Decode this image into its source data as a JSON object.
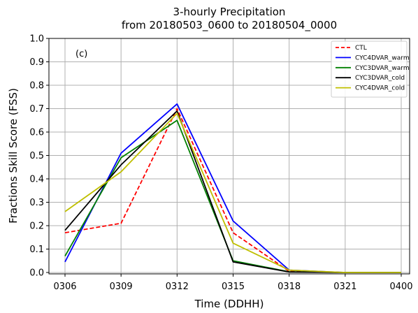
{
  "chart_data": {
    "type": "line",
    "title": "3-hourly Precipitation",
    "subtitle": "from 20180503_0600 to 20180504_0000",
    "panel_label": "(c)",
    "xlabel": "Time (DDHH)",
    "ylabel": "Fractions Skill Score (FSS)",
    "categories": [
      "0306",
      "0309",
      "0312",
      "0315",
      "0318",
      "0321",
      "0400"
    ],
    "ylim": [
      0.0,
      1.0
    ],
    "yticks": [
      "0.0",
      "0.1",
      "0.2",
      "0.3",
      "0.4",
      "0.5",
      "0.6",
      "0.7",
      "0.8",
      "0.9",
      "1.0"
    ],
    "grid": true,
    "legend_position": "top-right",
    "series": [
      {
        "name": "CTL",
        "color": "#ff0000",
        "dash": "dashed",
        "values": [
          0.17,
          0.21,
          0.7,
          0.17,
          0.005,
          0.0,
          0.0
        ]
      },
      {
        "name": "CYC4DVAR_warm",
        "color": "#0000ff",
        "dash": "solid",
        "values": [
          0.045,
          0.51,
          0.72,
          0.22,
          0.01,
          0.0,
          0.0
        ]
      },
      {
        "name": "CYC3DVAR_warm",
        "color": "#008000",
        "dash": "solid",
        "values": [
          0.07,
          0.49,
          0.65,
          0.05,
          0.003,
          0.0,
          0.0
        ]
      },
      {
        "name": "CYC3DVAR_cold",
        "color": "#000000",
        "dash": "solid",
        "values": [
          0.18,
          0.46,
          0.69,
          0.045,
          0.002,
          0.0,
          0.0
        ]
      },
      {
        "name": "CYC4DVAR_cold",
        "color": "#bfbf00",
        "dash": "solid",
        "values": [
          0.26,
          0.43,
          0.68,
          0.125,
          0.01,
          0.0,
          0.0
        ]
      }
    ]
  }
}
